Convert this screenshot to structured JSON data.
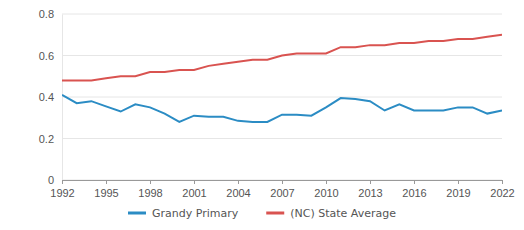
{
  "chart_data": {
    "type": "line",
    "x": [
      1992,
      1993,
      1994,
      1995,
      1996,
      1997,
      1998,
      1999,
      2000,
      2001,
      2002,
      2003,
      2004,
      2005,
      2006,
      2007,
      2008,
      2009,
      2010,
      2011,
      2012,
      2013,
      2014,
      2015,
      2016,
      2017,
      2018,
      2019,
      2020,
      2021,
      2022
    ],
    "series": [
      {
        "name": "Grandy Primary",
        "color": "#2b8cc4",
        "values": [
          0.41,
          0.37,
          0.38,
          0.355,
          0.33,
          0.365,
          0.35,
          0.32,
          0.28,
          0.31,
          0.305,
          0.305,
          0.285,
          0.28,
          0.28,
          0.315,
          0.315,
          0.31,
          0.35,
          0.395,
          0.39,
          0.38,
          0.335,
          0.365,
          0.335,
          0.335,
          0.335,
          0.35,
          0.35,
          0.32,
          0.335
        ]
      },
      {
        "name": "(NC) State Average",
        "color": "#d95350",
        "values": [
          0.48,
          0.48,
          0.48,
          0.49,
          0.5,
          0.5,
          0.52,
          0.52,
          0.53,
          0.53,
          0.55,
          0.56,
          0.57,
          0.58,
          0.58,
          0.6,
          0.61,
          0.61,
          0.61,
          0.64,
          0.64,
          0.65,
          0.65,
          0.66,
          0.66,
          0.67,
          0.67,
          0.68,
          0.68,
          0.69,
          0.7
        ]
      }
    ],
    "xlim": [
      1992,
      2022
    ],
    "xticks": [
      1992,
      1995,
      1998,
      2001,
      2004,
      2007,
      2010,
      2013,
      2016,
      2019,
      2022
    ],
    "ylim": [
      0,
      0.8
    ],
    "yticks": [
      0,
      0.2,
      0.4,
      0.6,
      0.8
    ],
    "grid": true,
    "legend": "bottom"
  }
}
